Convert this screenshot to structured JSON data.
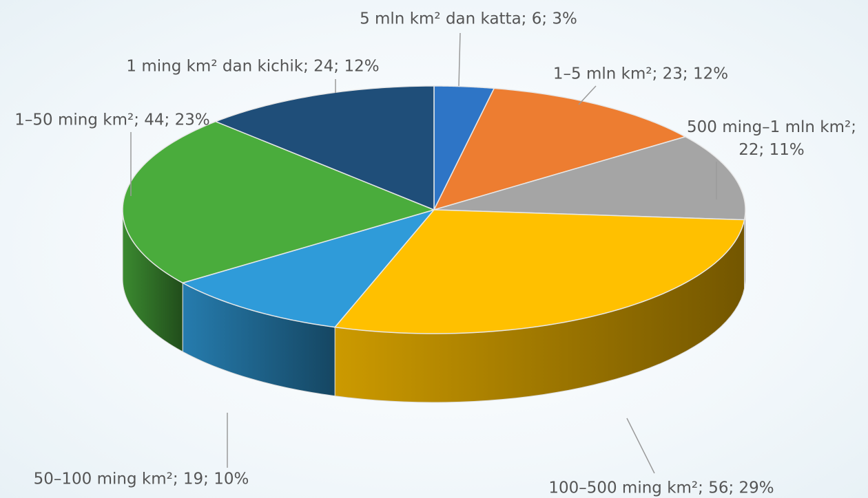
{
  "chart_data": {
    "type": "pie3d",
    "values": [
      6,
      23,
      22,
      56,
      19,
      44,
      24
    ],
    "value_labels": [
      "5 mln km² dan katta; 6; 3%",
      "1–5 mln km²; 23; 12%",
      "500 ming–1 mln km²;\n22; 11%",
      "100–500 ming km²; 56; 29%",
      "50–100 ming km²; 19; 10%",
      "1–50 ming km²; 44; 23%",
      "1 ming km² dan kichik; 24; 12%"
    ],
    "colors": [
      "#2e75c6",
      "#ed7d31",
      "#a5a5a5",
      "#ffc000",
      "#2f9bd9",
      "#4aac3c",
      "#1f4e79"
    ]
  }
}
